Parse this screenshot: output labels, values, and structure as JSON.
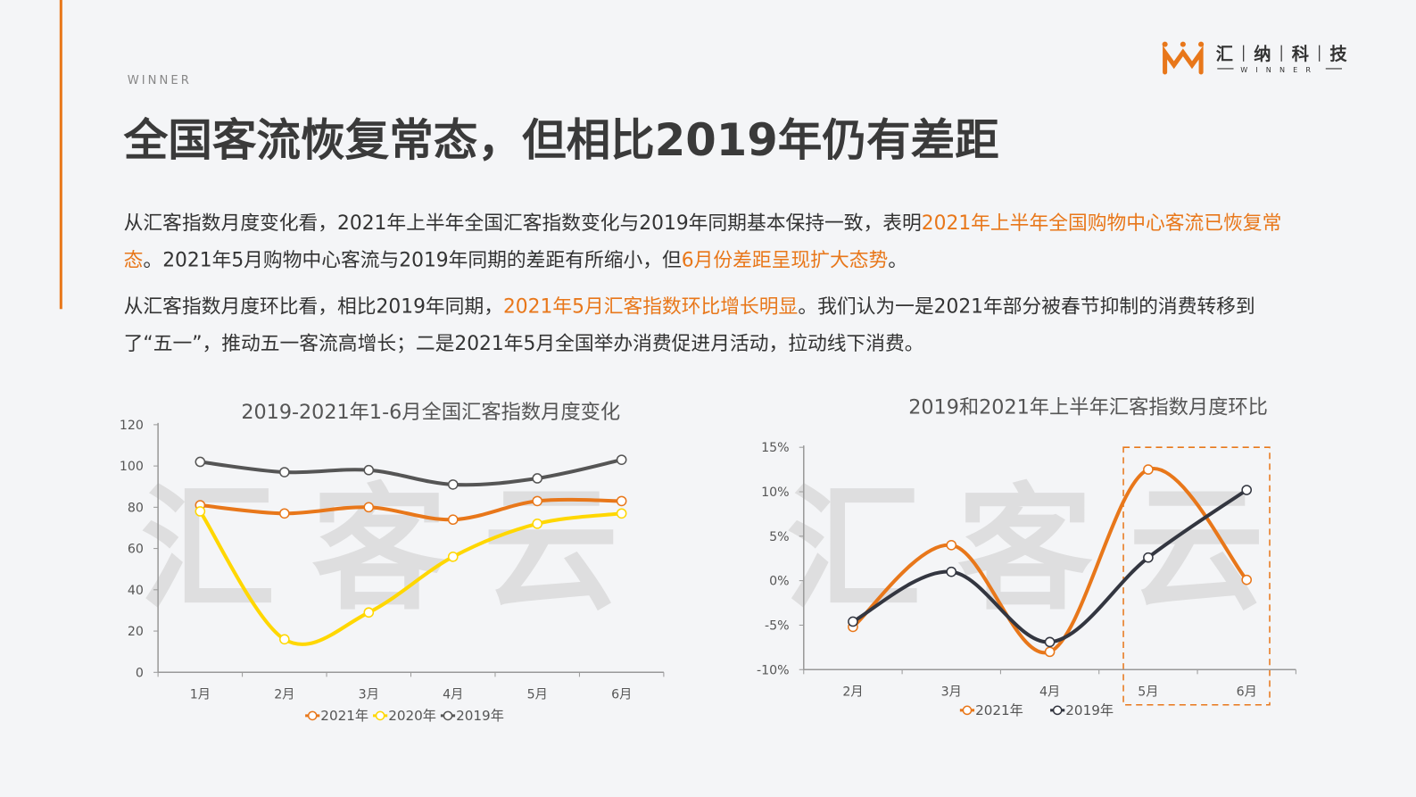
{
  "tag": "WINNER",
  "title": "全国客流恢复常态，但相比2019年仍有差距",
  "logo": {
    "chars": [
      "汇",
      "纳",
      "科",
      "技"
    ],
    "sub": "WINNER"
  },
  "watermark": "汇客云",
  "paragraphs": [
    [
      {
        "text": "从汇客指数月度变化看，2021年上半年全国汇客指数变化与2019年同期基本保持一致，表明",
        "color": "#333333"
      },
      {
        "text": "2021年上半年全国购物中心客流已恢复常态",
        "color": "#e8771a"
      },
      {
        "text": "。2021年5月购物中心客流与2019年同期的差距有所缩小，但",
        "color": "#333333"
      },
      {
        "text": "6月份差距呈现扩大态势",
        "color": "#e8771a"
      },
      {
        "text": "。",
        "color": "#333333"
      }
    ],
    [
      {
        "text": "从汇客指数月度环比看，相比2019年同期，",
        "color": "#333333"
      },
      {
        "text": "2021年5月汇客指数环比增长明显",
        "color": "#e8771a"
      },
      {
        "text": "。我们认为一是2021年部分被春节抑制的消费转移到了“五一”，推动五一客流高增长；二是2021年5月全国举办消费促进月活动，拉动线下消费。",
        "color": "#333333"
      }
    ]
  ],
  "chart_data": [
    {
      "type": "line",
      "title": "2019-2021年1-6月全国汇客指数月度变化",
      "categories": [
        "1月",
        "2月",
        "3月",
        "4月",
        "5月",
        "6月"
      ],
      "series": [
        {
          "name": "2021年",
          "color": "#e8771a",
          "values": [
            81,
            77,
            80,
            74,
            83,
            83
          ]
        },
        {
          "name": "2020年",
          "color": "#ffd700",
          "values": [
            78,
            16,
            29,
            56,
            72,
            77
          ]
        },
        {
          "name": "2019年",
          "color": "#555555",
          "values": [
            102,
            97,
            98,
            91,
            94,
            103
          ]
        }
      ],
      "ylim": [
        0,
        120
      ],
      "yticks": [
        0,
        20,
        40,
        60,
        80,
        100,
        120
      ],
      "smooth": true,
      "legend": "bottom"
    },
    {
      "type": "line",
      "title": "2019和2021年上半年汇客指数月度环比",
      "categories": [
        "2月",
        "3月",
        "4月",
        "5月",
        "6月"
      ],
      "series": [
        {
          "name": "2021年",
          "color": "#e8771a",
          "values": [
            -5.2,
            4,
            -8,
            12.5,
            0.1
          ]
        },
        {
          "name": "2019年",
          "color": "#333640",
          "values": [
            -4.6,
            1,
            -6.9,
            2.6,
            10.2
          ]
        }
      ],
      "ylim": [
        -10,
        15
      ],
      "yticks": [
        {
          "value": -10,
          "label": "-10%"
        },
        {
          "value": -5,
          "label": "-5%"
        },
        {
          "value": 0,
          "label": "0%"
        },
        {
          "value": 5,
          "label": "5%"
        },
        {
          "value": 10,
          "label": "10%"
        },
        {
          "value": 15,
          "label": "15%"
        }
      ],
      "smooth": true,
      "legend": "bottom"
    }
  ]
}
